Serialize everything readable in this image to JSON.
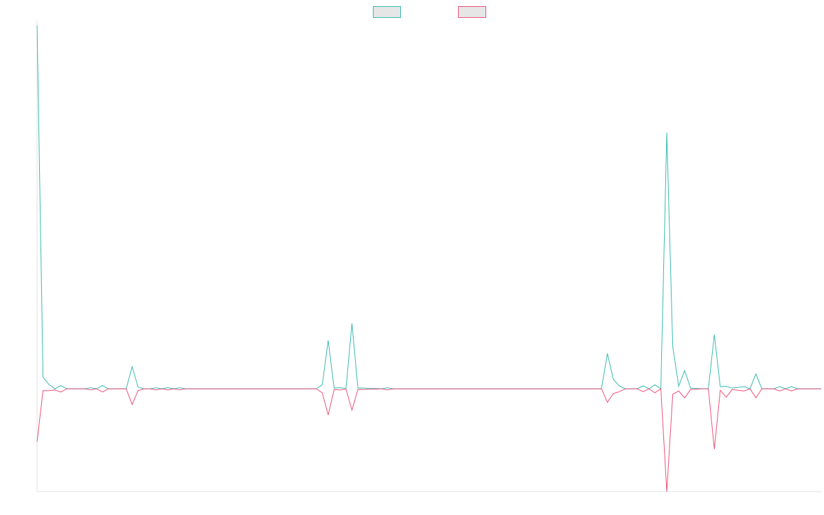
{
  "chart_data": {
    "type": "line",
    "title": "",
    "xlabel": "",
    "ylabel": "",
    "legend": "top-center",
    "grid": false,
    "ylim": [
      -0.283,
      1.0
    ],
    "x": [
      0,
      1,
      2,
      3,
      4,
      5,
      6,
      7,
      8,
      9,
      10,
      11,
      12,
      13,
      14,
      15,
      16,
      17,
      18,
      19,
      20,
      21,
      22,
      23,
      24,
      25,
      26,
      27,
      28,
      29,
      30,
      31,
      32,
      33,
      34,
      35,
      36,
      37,
      38,
      39,
      40,
      41,
      42,
      43,
      44,
      45,
      46,
      47,
      48,
      49,
      50,
      51,
      52,
      53,
      54,
      55,
      56,
      57,
      58,
      59,
      60,
      61,
      62,
      63,
      64,
      65,
      66,
      67,
      68,
      69,
      70,
      71,
      72,
      73,
      74,
      75,
      76,
      77,
      78,
      79,
      80,
      81,
      82,
      83,
      84,
      85,
      86,
      87,
      88,
      89,
      90,
      91,
      92,
      93,
      94,
      95,
      96,
      97,
      98,
      99,
      100,
      101,
      102,
      103,
      104,
      105,
      106,
      107,
      108,
      109,
      110,
      111,
      112,
      113,
      114,
      115,
      116,
      117,
      118,
      119,
      120,
      121,
      122,
      123,
      124,
      125,
      126,
      127,
      128,
      129,
      130,
      131,
      132
    ],
    "series": [
      {
        "color": "#36b9b0",
        "values": [
          1.0,
          0.032,
          0.012,
          0.0,
          0.009,
          0.0,
          0.0,
          0.0,
          0.0,
          0.003,
          0.0,
          0.009,
          0.0,
          0.0,
          0.0,
          0.0,
          0.061,
          0.005,
          0.0,
          0.0,
          0.003,
          0.0,
          0.003,
          0.0,
          0.003,
          0.0,
          0.0,
          0.0,
          0.0,
          0.0,
          0.0,
          0.0,
          0.0,
          0.0,
          0.0,
          0.0,
          0.0,
          0.0,
          0.0,
          0.0,
          0.0,
          0.0,
          0.0,
          0.0,
          0.0,
          0.0,
          0.0,
          0.0,
          0.011,
          0.133,
          0.002,
          0.003,
          0.001,
          0.18,
          0.002,
          0.002,
          0.001,
          0.001,
          0.0,
          0.003,
          0.0,
          0.0,
          0.0,
          0.0,
          0.0,
          0.0,
          0.0,
          0.0,
          0.0,
          0.0,
          0.0,
          0.0,
          0.0,
          0.0,
          0.0,
          0.0,
          0.0,
          0.0,
          0.0,
          0.0,
          0.0,
          0.0,
          0.0,
          0.0,
          0.0,
          0.0,
          0.0,
          0.0,
          0.0,
          0.0,
          0.0,
          0.0,
          0.0,
          0.0,
          0.0,
          0.0,
          0.097,
          0.026,
          0.008,
          0.0,
          0.0,
          0.0,
          0.008,
          0.0,
          0.011,
          0.0,
          0.705,
          0.116,
          0.007,
          0.05,
          0.002,
          0.001,
          0.0,
          0.0,
          0.149,
          0.006,
          0.007,
          0.002,
          0.004,
          0.006,
          0.0,
          0.041,
          0.0,
          0.0,
          0.0,
          0.006,
          0.0,
          0.006,
          0.0,
          0.0,
          0.0,
          0.0,
          0.0
        ],
        "type": "line"
      },
      {
        "color": "#ec4f76",
        "values": [
          -0.146,
          -0.005,
          -0.005,
          -0.003,
          -0.009,
          0.0,
          0.0,
          0.0,
          0.0,
          -0.003,
          0.0,
          -0.009,
          0.0,
          0.0,
          0.0,
          0.0,
          -0.043,
          -0.005,
          0.0,
          0.0,
          -0.003,
          0.0,
          -0.003,
          0.0,
          -0.003,
          0.0,
          0.0,
          0.0,
          0.0,
          0.0,
          0.0,
          0.0,
          0.0,
          0.0,
          0.0,
          0.0,
          0.0,
          0.0,
          0.0,
          0.0,
          0.0,
          0.0,
          0.0,
          0.0,
          0.0,
          0.0,
          0.0,
          0.0,
          -0.011,
          -0.072,
          -0.002,
          -0.003,
          -0.001,
          -0.059,
          -0.002,
          -0.002,
          -0.001,
          -0.001,
          0.0,
          -0.003,
          0.0,
          0.0,
          0.0,
          0.0,
          0.0,
          0.0,
          0.0,
          0.0,
          0.0,
          0.0,
          0.0,
          0.0,
          0.0,
          0.0,
          0.0,
          0.0,
          0.0,
          0.0,
          0.0,
          0.0,
          0.0,
          0.0,
          0.0,
          0.0,
          0.0,
          0.0,
          0.0,
          0.0,
          0.0,
          0.0,
          0.0,
          0.0,
          0.0,
          0.0,
          0.0,
          0.0,
          -0.037,
          -0.013,
          -0.008,
          0.0,
          0.0,
          0.0,
          -0.008,
          0.0,
          -0.011,
          0.0,
          -0.283,
          -0.015,
          -0.006,
          -0.025,
          -0.002,
          -0.001,
          0.0,
          0.0,
          -0.166,
          -0.004,
          -0.023,
          -0.002,
          -0.004,
          -0.006,
          0.0,
          -0.025,
          0.0,
          0.0,
          0.0,
          -0.006,
          0.0,
          -0.006,
          0.0,
          0.0,
          0.0,
          0.0,
          0.0
        ],
        "type": "line"
      }
    ]
  }
}
